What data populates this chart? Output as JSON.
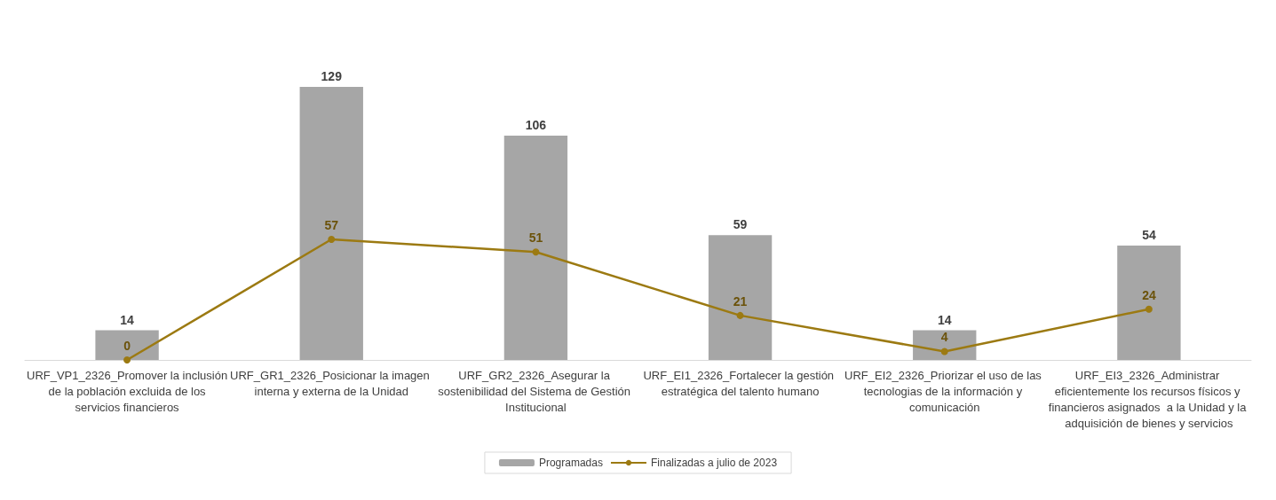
{
  "chart_data": {
    "type": "bar",
    "categories": [
      "URF_VP1_2326_Promover la inclusión de la población excluida de los servicios financieros",
      "URF_GR1_2326_Posicionar la imagen interna y externa de la Unidad",
      "URF_GR2_2326_Asegurar la sostenibilidad del Sistema de Gestión Institucional",
      "URF_EI1_2326_Fortalecer la gestión estratégica del talento humano",
      "URF_EI2_2326_Priorizar el uso de las tecnologias de la información y comunicación",
      "URF_EI3_2326_Administrar eficientemente los recursos físicos y financieros asignados  a la Unidad y la adquisición de bienes y servicios"
    ],
    "series": [
      {
        "name": "Programadas",
        "color": "#a6a6a6",
        "values": [
          14,
          129,
          106,
          59,
          14,
          54
        ]
      },
      {
        "name": "Finalizadas a julio de 2023",
        "type": "line",
        "color": "#9c7a12",
        "values": [
          0,
          57,
          51,
          21,
          4,
          24
        ]
      }
    ],
    "data_labels": true,
    "legend": "bottom",
    "marker": "circle"
  }
}
